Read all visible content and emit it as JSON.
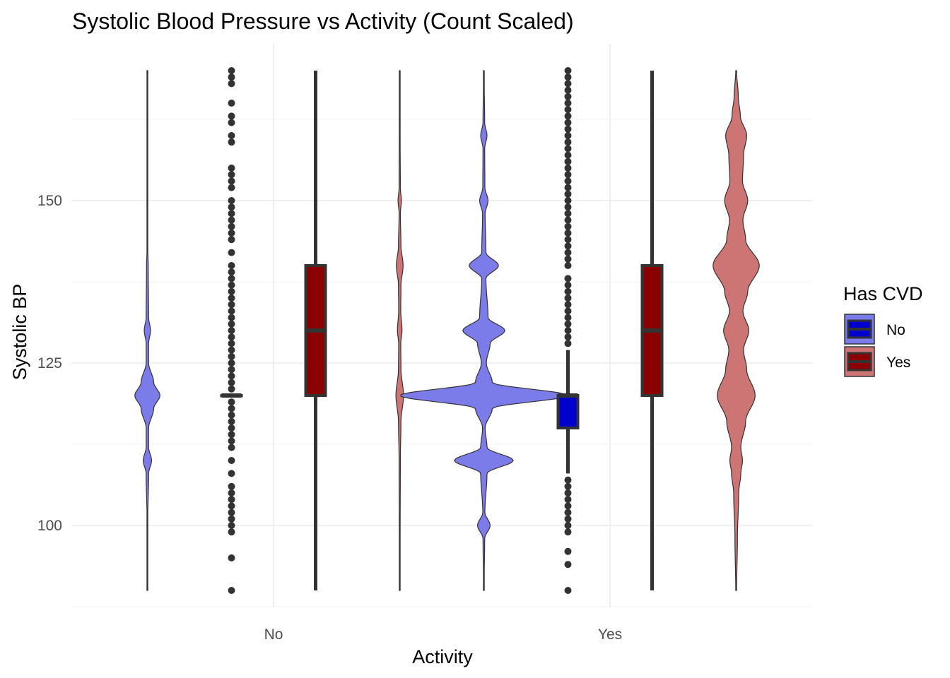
{
  "chart_data": {
    "type": "violin",
    "title": "Systolic Blood Pressure vs Activity (Count Scaled)",
    "xlabel": "Activity",
    "ylabel": "Systolic BP",
    "categories": [
      "No",
      "Yes"
    ],
    "yticks": [
      100,
      125,
      150
    ],
    "ylim": [
      88,
      172
    ],
    "grid": true,
    "legend": {
      "title": "Has CVD",
      "position": "right",
      "entries": [
        {
          "label": "No",
          "violin_color": "#7b7bea",
          "box_color": "#0000cd"
        },
        {
          "label": "Yes",
          "violin_color": "#cd7474",
          "box_color": "#8b0000"
        }
      ]
    },
    "groups": [
      {
        "activity": "No",
        "has_cvd": "No",
        "box": {
          "q1": 120,
          "median": 120,
          "q3": 120,
          "whisker_low": 120,
          "whisker_high": 120
        },
        "violin_density": [
          [
            90,
            0.1
          ],
          [
            100,
            0.1
          ],
          [
            108,
            0.6
          ],
          [
            110,
            2
          ],
          [
            112,
            0.6
          ],
          [
            115,
            0.6
          ],
          [
            118,
            3
          ],
          [
            120,
            6
          ],
          [
            122,
            3
          ],
          [
            125,
            0.6
          ],
          [
            128,
            0.6
          ],
          [
            130,
            1.5
          ],
          [
            132,
            0.6
          ],
          [
            140,
            0.4
          ],
          [
            143,
            0.1
          ],
          [
            150,
            0.1
          ],
          [
            170,
            0.1
          ]
        ],
        "outliers": [
          90,
          95,
          99,
          100,
          101,
          102,
          103,
          104,
          105,
          106,
          108,
          110,
          112,
          113,
          114,
          115,
          116,
          117,
          118,
          119,
          121,
          122,
          123,
          124,
          125,
          126,
          127,
          128,
          129,
          130,
          131,
          132,
          133,
          134,
          135,
          136,
          137,
          138,
          139,
          140,
          142,
          144,
          145,
          146,
          147,
          148,
          149,
          150,
          152,
          153,
          154,
          155,
          159,
          160,
          162,
          163,
          165,
          168,
          169,
          170
        ]
      },
      {
        "activity": "No",
        "has_cvd": "Yes",
        "box": {
          "q1": 120,
          "median": 130,
          "q3": 140,
          "whisker_low": 90,
          "whisker_high": 170
        },
        "violin_density": [
          [
            90,
            0.1
          ],
          [
            98,
            0.2
          ],
          [
            110,
            0.3
          ],
          [
            116,
            0.6
          ],
          [
            120,
            1.8
          ],
          [
            124,
            0.6
          ],
          [
            128,
            0.5
          ],
          [
            130,
            1.1
          ],
          [
            133,
            0.5
          ],
          [
            137,
            0.6
          ],
          [
            140,
            1.6
          ],
          [
            143,
            0.6
          ],
          [
            148,
            0.3
          ],
          [
            150,
            0.8
          ],
          [
            152,
            0.3
          ],
          [
            160,
            0.2
          ],
          [
            170,
            0.1
          ]
        ],
        "outliers": []
      },
      {
        "activity": "Yes",
        "has_cvd": "No",
        "box": {
          "q1": 115,
          "median": 120,
          "q3": 120,
          "whisker_low": 108,
          "whisker_high": 127
        },
        "violin_density": [
          [
            90,
            0.1
          ],
          [
            98,
            0.4
          ],
          [
            100,
            3
          ],
          [
            102,
            0.5
          ],
          [
            108,
            1.5
          ],
          [
            110,
            14
          ],
          [
            112,
            1.5
          ],
          [
            115,
            0.6
          ],
          [
            118,
            4
          ],
          [
            120,
            40
          ],
          [
            122,
            4
          ],
          [
            125,
            1.2
          ],
          [
            128,
            3
          ],
          [
            130,
            10
          ],
          [
            132,
            2
          ],
          [
            138,
            1
          ],
          [
            140,
            7
          ],
          [
            142,
            1
          ],
          [
            148,
            0.6
          ],
          [
            150,
            2
          ],
          [
            152,
            0.5
          ],
          [
            158,
            0.4
          ],
          [
            160,
            1.5
          ],
          [
            162,
            0.4
          ],
          [
            170,
            0.1
          ]
        ],
        "outliers": [
          90,
          94,
          96,
          99,
          100,
          101,
          102,
          103,
          104,
          105,
          106,
          107,
          128,
          129,
          130,
          131,
          132,
          133,
          134,
          135,
          136,
          137,
          138,
          140,
          141,
          142,
          143,
          144,
          145,
          146,
          147,
          148,
          149,
          150,
          151,
          152,
          153,
          154,
          155,
          156,
          157,
          158,
          159,
          160,
          161,
          162,
          163,
          164,
          165,
          166,
          167,
          168,
          169,
          170
        ]
      },
      {
        "activity": "Yes",
        "has_cvd": "Yes",
        "box": {
          "q1": 120,
          "median": 130,
          "q3": 140,
          "whisker_low": 90,
          "whisker_high": 170
        },
        "violin_density": [
          [
            90,
            0.2
          ],
          [
            98,
            0.6
          ],
          [
            105,
            1.2
          ],
          [
            108,
            2.2
          ],
          [
            110,
            3
          ],
          [
            112,
            2.2
          ],
          [
            116,
            4.5
          ],
          [
            120,
            9
          ],
          [
            124,
            5
          ],
          [
            127,
            3.5
          ],
          [
            130,
            6
          ],
          [
            133,
            3.2
          ],
          [
            136,
            5.5
          ],
          [
            140,
            11
          ],
          [
            144,
            4.5
          ],
          [
            147,
            3.2
          ],
          [
            150,
            5.5
          ],
          [
            153,
            3
          ],
          [
            157,
            3.5
          ],
          [
            160,
            5
          ],
          [
            163,
            2
          ],
          [
            166,
            1
          ],
          [
            170,
            0.2
          ]
        ],
        "outliers": []
      }
    ]
  }
}
